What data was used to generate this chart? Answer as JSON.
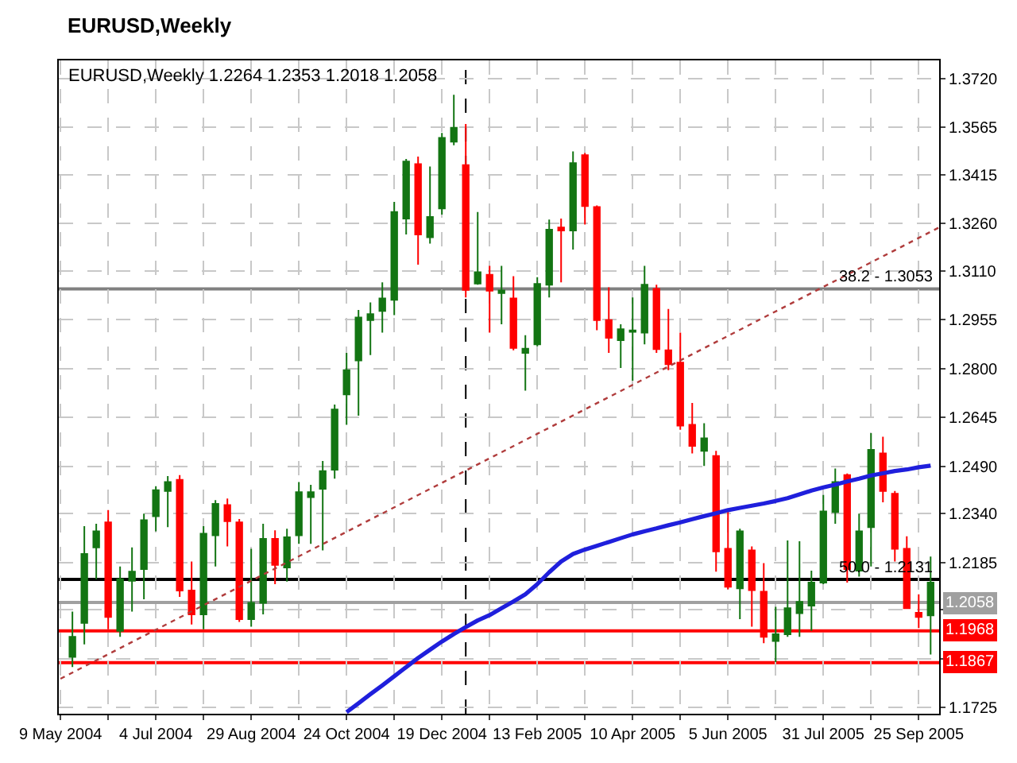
{
  "chart_data": {
    "type": "candlestick",
    "title": "EURUSD,Weekly",
    "subtitle": "EURUSD,Weekly 1.2264 1.2353 1.2018 1.2058",
    "x": [
      "2004-05-16",
      "2004-05-23",
      "2004-05-30",
      "2004-06-06",
      "2004-06-13",
      "2004-06-20",
      "2004-06-27",
      "2004-07-04",
      "2004-07-11",
      "2004-07-18",
      "2004-07-25",
      "2004-08-01",
      "2004-08-08",
      "2004-08-15",
      "2004-08-22",
      "2004-08-29",
      "2004-09-05",
      "2004-09-12",
      "2004-09-19",
      "2004-09-26",
      "2004-10-03",
      "2004-10-10",
      "2004-10-17",
      "2004-10-24",
      "2004-10-31",
      "2004-11-07",
      "2004-11-14",
      "2004-11-21",
      "2004-11-28",
      "2004-12-05",
      "2004-12-12",
      "2004-12-19",
      "2004-12-26",
      "2005-01-02",
      "2005-01-09",
      "2005-01-16",
      "2005-01-23",
      "2005-01-30",
      "2005-02-06",
      "2005-02-13",
      "2005-02-20",
      "2005-02-27",
      "2005-03-06",
      "2005-03-13",
      "2005-03-20",
      "2005-03-27",
      "2005-04-03",
      "2005-04-10",
      "2005-04-17",
      "2005-04-24",
      "2005-05-01",
      "2005-05-08",
      "2005-05-15",
      "2005-05-22",
      "2005-05-29",
      "2005-06-05",
      "2005-06-12",
      "2005-06-19",
      "2005-06-26",
      "2005-07-03",
      "2005-07-10",
      "2005-07-17",
      "2005-07-24",
      "2005-07-31",
      "2005-08-07",
      "2005-08-14",
      "2005-08-21",
      "2005-08-28",
      "2005-09-04",
      "2005-09-11",
      "2005-09-18",
      "2005-09-25",
      "2005-10-02"
    ],
    "ohlc": [
      [
        1.1885,
        1.2029,
        1.1853,
        1.1949
      ],
      [
        1.1993,
        1.23,
        1.1925,
        1.2212
      ],
      [
        1.2233,
        1.2308,
        1.2132,
        1.2284
      ],
      [
        1.2312,
        1.2351,
        1.1973,
        1.2012
      ],
      [
        1.1968,
        1.2172,
        1.1949,
        1.2132
      ],
      [
        1.2127,
        1.2233,
        1.2029,
        1.2156
      ],
      [
        1.2164,
        1.234,
        1.2068,
        1.2319
      ],
      [
        1.2332,
        1.2427,
        1.2284,
        1.2414
      ],
      [
        1.2412,
        1.2459,
        1.2297,
        1.244
      ],
      [
        1.2447,
        1.2462,
        1.2076,
        1.2096
      ],
      [
        1.2096,
        1.2188,
        1.1988,
        1.202
      ],
      [
        1.202,
        1.23,
        1.1973,
        1.2276
      ],
      [
        1.2271,
        1.2383,
        1.2172,
        1.2371
      ],
      [
        1.2367,
        1.2388,
        1.2236,
        1.2316
      ],
      [
        1.2312,
        1.2323,
        1.1996,
        1.2005
      ],
      [
        1.2005,
        1.2228,
        1.1981,
        1.2057
      ],
      [
        1.2057,
        1.2308,
        1.202,
        1.226
      ],
      [
        1.226,
        1.2287,
        1.2116,
        1.2177
      ],
      [
        1.2169,
        1.2292,
        1.2124,
        1.2265
      ],
      [
        1.2271,
        1.244,
        1.2244,
        1.2408
      ],
      [
        1.2392,
        1.2431,
        1.2244,
        1.2408
      ],
      [
        1.2419,
        1.2507,
        1.2223,
        1.2475
      ],
      [
        1.2479,
        1.2686,
        1.2451,
        1.267
      ],
      [
        1.2718,
        1.285,
        1.2622,
        1.2795
      ],
      [
        1.2826,
        1.2986,
        1.2651,
        1.2962
      ],
      [
        1.2954,
        1.301,
        1.2843,
        1.2973
      ],
      [
        1.2983,
        1.3074,
        1.2914,
        1.3023
      ],
      [
        1.3018,
        1.3329,
        1.297,
        1.3297
      ],
      [
        1.3276,
        1.3465,
        1.3226,
        1.3457
      ],
      [
        1.3449,
        1.3473,
        1.313,
        1.3226
      ],
      [
        1.3217,
        1.3441,
        1.3197,
        1.3281
      ],
      [
        1.3308,
        1.3548,
        1.3289,
        1.3532
      ],
      [
        1.352,
        1.3669,
        1.3509,
        1.3564
      ],
      [
        1.3446,
        1.3576,
        1.3026,
        1.305
      ],
      [
        1.307,
        1.3297,
        1.3066,
        1.3106
      ],
      [
        1.3098,
        1.3126,
        1.2914,
        1.3047
      ],
      [
        1.304,
        1.3126,
        1.2941,
        1.3048
      ],
      [
        1.3023,
        1.3093,
        1.2858,
        1.2866
      ],
      [
        1.285,
        1.2906,
        1.273,
        1.2863
      ],
      [
        1.2877,
        1.309,
        1.2871,
        1.3069
      ],
      [
        1.3066,
        1.3273,
        1.3026,
        1.3241
      ],
      [
        1.3248,
        1.3276,
        1.3074,
        1.3238
      ],
      [
        1.3238,
        1.3489,
        1.3178,
        1.3452
      ],
      [
        1.3477,
        1.3484,
        1.3257,
        1.3316
      ],
      [
        1.3313,
        1.3318,
        1.2922,
        1.2954
      ],
      [
        1.2954,
        1.3058,
        1.285,
        1.2898
      ],
      [
        1.289,
        1.2941,
        1.2802,
        1.2925
      ],
      [
        1.2917,
        1.3026,
        1.2762,
        1.2921
      ],
      [
        1.2914,
        1.3126,
        1.2877,
        1.3066
      ],
      [
        1.3053,
        1.3066,
        1.285,
        1.2862
      ],
      [
        1.2858,
        1.2989,
        1.2795,
        1.2814
      ],
      [
        1.2819,
        1.2914,
        1.2606,
        1.2619
      ],
      [
        1.2622,
        1.2691,
        1.2531,
        1.2555
      ],
      [
        1.2539,
        1.2627,
        1.2491,
        1.2579
      ],
      [
        1.2523,
        1.2539,
        1.2156,
        1.222
      ],
      [
        1.2228,
        1.2347,
        1.21,
        1.2108
      ],
      [
        1.2103,
        1.2292,
        1.2005,
        1.2284
      ],
      [
        1.2223,
        1.2236,
        1.1981,
        1.2097
      ],
      [
        1.2092,
        1.2183,
        1.1929,
        1.1949
      ],
      [
        1.1936,
        1.2044,
        1.1869,
        1.1957
      ],
      [
        1.1957,
        1.2255,
        1.1949,
        1.204
      ],
      [
        1.2024,
        1.2252,
        1.1949,
        1.206
      ],
      [
        1.2048,
        1.2159,
        1.1968,
        1.2121
      ],
      [
        1.2121,
        1.2399,
        1.2116,
        1.2347
      ],
      [
        1.2345,
        1.2483,
        1.2308,
        1.244
      ],
      [
        1.2462,
        1.2467,
        1.2121,
        1.2164
      ],
      [
        1.2159,
        1.234,
        1.214,
        1.2284
      ],
      [
        1.2297,
        1.2595,
        1.2172,
        1.2542
      ],
      [
        1.2531,
        1.2584,
        1.2376,
        1.2412
      ],
      [
        1.2403,
        1.2412,
        1.2188,
        1.2228
      ],
      [
        1.2228,
        1.2268,
        1.2038,
        1.204
      ],
      [
        1.2025,
        1.2084,
        1.1977,
        1.2012
      ],
      [
        1.2017,
        1.2204,
        1.1893,
        1.2121
      ]
    ],
    "colors": [
      "#137513",
      "#137513",
      "#137513",
      "#ff0000",
      "#137513",
      "#137513",
      "#137513",
      "#137513",
      "#137513",
      "#ff0000",
      "#ff0000",
      "#137513",
      "#137513",
      "#ff0000",
      "#ff0000",
      "#137513",
      "#137513",
      "#ff0000",
      "#137513",
      "#137513",
      "#137513",
      "#137513",
      "#137513",
      "#137513",
      "#137513",
      "#137513",
      "#137513",
      "#137513",
      "#137513",
      "#ff0000",
      "#137513",
      "#137513",
      "#137513",
      "#ff0000",
      "#137513",
      "#ff0000",
      "#137513",
      "#ff0000",
      "#137513",
      "#137513",
      "#137513",
      "#ff0000",
      "#137513",
      "#ff0000",
      "#ff0000",
      "#ff0000",
      "#137513",
      "#137513",
      "#137513",
      "#ff0000",
      "#ff0000",
      "#ff0000",
      "#ff0000",
      "#137513",
      "#ff0000",
      "#ff0000",
      "#137513",
      "#ff0000",
      "#ff0000",
      "#137513",
      "#137513",
      "#137513",
      "#137513",
      "#137513",
      "#137513",
      "#ff0000",
      "#137513",
      "#137513",
      "#ff0000",
      "#ff0000",
      "#ff0000",
      "#ff0000",
      "#137513"
    ],
    "series": [
      {
        "type": "line",
        "color": "#1f1fdc",
        "x": [
          "2004-10-24",
          "2004-10-31",
          "2004-11-07",
          "2004-11-14",
          "2004-11-21",
          "2004-11-28",
          "2004-12-05",
          "2004-12-12",
          "2004-12-19",
          "2004-12-26",
          "2005-01-02",
          "2005-01-09",
          "2005-01-16",
          "2005-01-23",
          "2005-01-30",
          "2005-02-06",
          "2005-02-13",
          "2005-02-20",
          "2005-02-27",
          "2005-03-06",
          "2005-03-13",
          "2005-03-20",
          "2005-03-27",
          "2005-04-03",
          "2005-04-10",
          "2005-04-17",
          "2005-04-24",
          "2005-05-01",
          "2005-05-08",
          "2005-05-15",
          "2005-05-22",
          "2005-05-29",
          "2005-06-05",
          "2005-06-12",
          "2005-06-19",
          "2005-06-26",
          "2005-07-03",
          "2005-07-10",
          "2005-07-17",
          "2005-07-24",
          "2005-07-31",
          "2005-08-07",
          "2005-08-14",
          "2005-08-21",
          "2005-08-28",
          "2005-09-04",
          "2005-09-11",
          "2005-09-18",
          "2005-09-25",
          "2005-10-02"
        ],
        "values": [
          1.171,
          1.1738,
          1.1767,
          1.1795,
          1.1824,
          1.1853,
          1.1882,
          1.1908,
          1.1934,
          1.1958,
          1.198,
          1.2001,
          1.2018,
          1.204,
          1.2061,
          1.2084,
          1.2116,
          1.2154,
          1.2188,
          1.2212,
          1.2226,
          1.2238,
          1.225,
          1.2262,
          1.2274,
          1.2284,
          1.2293,
          1.2303,
          1.2312,
          1.2322,
          1.2332,
          1.2341,
          1.2351,
          1.2358,
          1.2365,
          1.2372,
          1.238,
          1.2389,
          1.2401,
          1.2413,
          1.2423,
          1.2432,
          1.2442,
          1.2451,
          1.2461,
          1.2468,
          1.2475,
          1.248,
          1.2487,
          1.2492
        ]
      },
      {
        "type": "line",
        "color": "#b03c3c",
        "line_style": "dotted",
        "x": [
          "2004-05-09",
          "2005-10-07"
        ],
        "values": [
          1.1816,
          1.3248
        ]
      }
    ],
    "ref_lines": [
      {
        "axis": "y",
        "value": 1.3053,
        "color": "#808080"
      },
      {
        "axis": "y",
        "value": 1.2131,
        "color": "#000000"
      },
      {
        "axis": "y",
        "value": 1.2058,
        "label": "1.2058",
        "color": "#a0a0a0"
      },
      {
        "axis": "y",
        "value": 1.1968,
        "label": "1.1968",
        "color": "#ff0000"
      },
      {
        "axis": "y",
        "value": 1.1867,
        "label": "1.1867",
        "color": "#ff0000"
      },
      {
        "axis": "x",
        "value": "2005-01-02",
        "color": "#000000",
        "line_style": "dashed"
      }
    ],
    "annotations": [
      {
        "text": "38.2 - 1.3053",
        "x": "2005-10-07",
        "y": 1.3053
      },
      {
        "text": "50.0 - 1.2131",
        "x": "2005-10-07",
        "y": 1.2131
      }
    ],
    "xlim": [
      "2004-05-08",
      "2005-10-07"
    ],
    "xticks": [
      {
        "value": "2004-05-09",
        "label": "9 May 2004"
      },
      {
        "value": "2004-06-06",
        "label": null
      },
      {
        "value": "2004-07-04",
        "label": "4 Jul 2004"
      },
      {
        "value": "2004-08-01",
        "label": null
      },
      {
        "value": "2004-08-29",
        "label": "29 Aug 2004"
      },
      {
        "value": "2004-09-26",
        "label": null
      },
      {
        "value": "2004-10-24",
        "label": "24 Oct 2004"
      },
      {
        "value": "2004-11-21",
        "label": null
      },
      {
        "value": "2004-12-19",
        "label": "19 Dec 2004"
      },
      {
        "value": "2005-01-16",
        "label": null
      },
      {
        "value": "2005-02-13",
        "label": "13 Feb 2005"
      },
      {
        "value": "2005-03-13",
        "label": null
      },
      {
        "value": "2005-04-10",
        "label": "10 Apr 2005"
      },
      {
        "value": "2005-05-08",
        "label": null
      },
      {
        "value": "2005-06-05",
        "label": "5 Jun 2005"
      },
      {
        "value": "2005-07-03",
        "label": null
      },
      {
        "value": "2005-07-31",
        "label": "31 Jul 2005"
      },
      {
        "value": "2005-08-28",
        "label": null
      },
      {
        "value": "2005-09-25",
        "label": "25 Sep 2005"
      }
    ],
    "ylim": [
      1.1705,
      1.3778
    ],
    "yticks": [
      {
        "value": 1.372,
        "label": "1.3720"
      },
      1.3565,
      1.3415,
      {
        "value": 1.326,
        "label": "1.3260"
      },
      {
        "value": 1.311,
        "label": "1.3110"
      },
      1.2955,
      {
        "value": 1.28,
        "label": "1.2800"
      },
      1.2645,
      {
        "value": 1.249,
        "label": "1.2490"
      },
      {
        "value": 1.234,
        "label": "1.2340"
      },
      1.2185,
      {
        "value": 1.2035,
        "label": null
      },
      {
        "value": 1.188,
        "label": null
      },
      1.1725
    ],
    "grid": true
  }
}
